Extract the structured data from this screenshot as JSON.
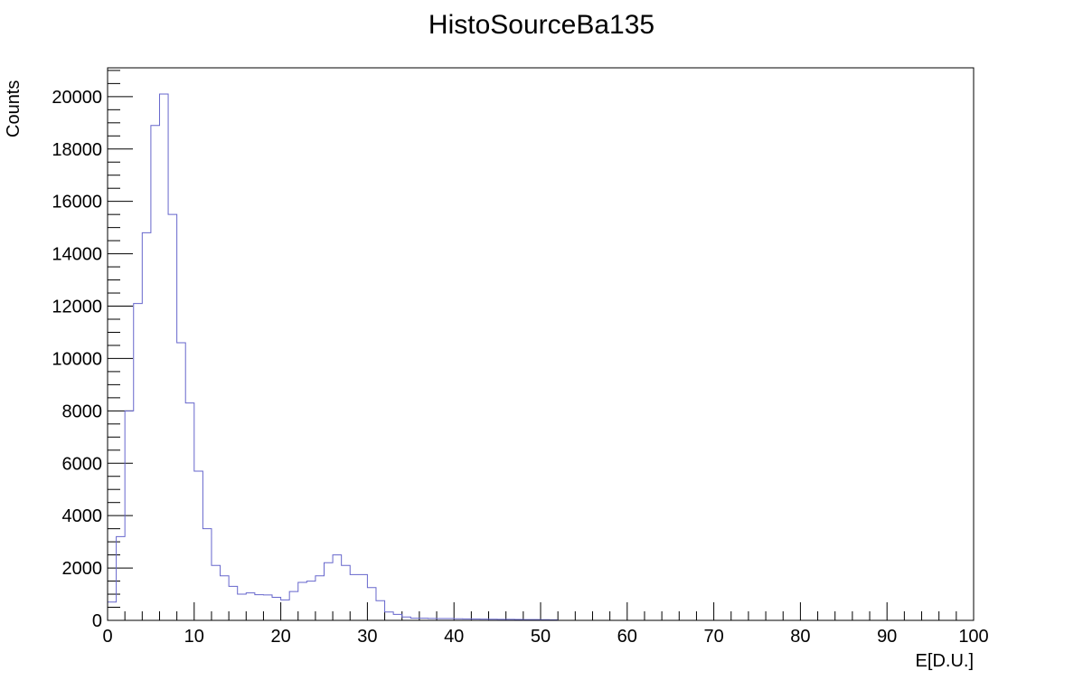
{
  "chart_data": {
    "type": "bar",
    "title": "HistoSourceBa135",
    "xlabel": "E[D.U.]",
    "ylabel": "Counts",
    "xlim": [
      0,
      100
    ],
    "ylim": [
      0,
      21100
    ],
    "x_ticks": [
      0,
      10,
      20,
      30,
      40,
      50,
      60,
      70,
      80,
      90,
      100
    ],
    "y_ticks": [
      0,
      2000,
      4000,
      6000,
      8000,
      10000,
      12000,
      14000,
      16000,
      18000,
      20000
    ],
    "bin_width": 1,
    "line_color": "#6666cc",
    "grid": false,
    "legend": "none",
    "x": [
      0,
      1,
      2,
      3,
      4,
      5,
      6,
      7,
      8,
      9,
      10,
      11,
      12,
      13,
      14,
      15,
      16,
      17,
      18,
      19,
      20,
      21,
      22,
      23,
      24,
      25,
      26,
      27,
      28,
      29,
      30,
      31,
      32,
      33,
      34,
      35,
      36,
      37,
      38,
      39,
      40,
      41,
      42,
      43,
      44,
      45,
      46,
      47,
      48,
      49,
      50,
      51
    ],
    "values": [
      700,
      3200,
      8000,
      12100,
      14800,
      18900,
      20100,
      15500,
      10600,
      8300,
      5700,
      3500,
      2100,
      1700,
      1300,
      1000,
      1050,
      980,
      970,
      880,
      780,
      1100,
      1450,
      1500,
      1700,
      2200,
      2500,
      2100,
      1750,
      1750,
      1250,
      750,
      320,
      230,
      130,
      80,
      80,
      75,
      70,
      70,
      60,
      55,
      50,
      48,
      45,
      40,
      38,
      35,
      32,
      30,
      25,
      20
    ]
  }
}
